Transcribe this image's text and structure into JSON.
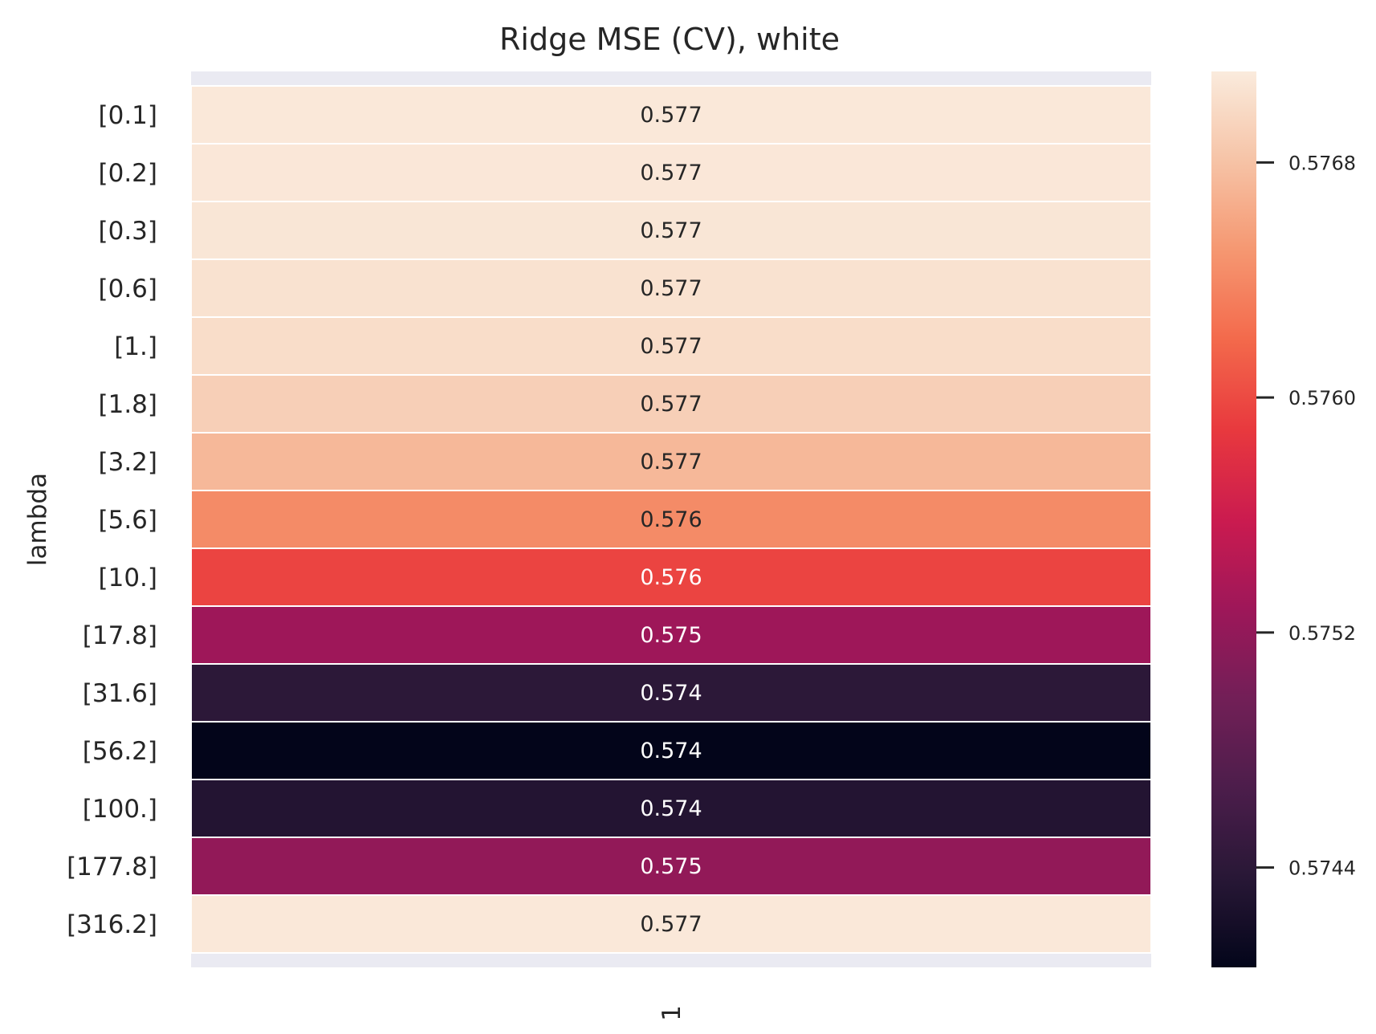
{
  "chart_data": {
    "type": "heatmap",
    "title": "Ridge MSE (CV), white",
    "ylabel": "lambda",
    "xlabel": "",
    "x_categories": [
      "1"
    ],
    "y_categories": [
      "[0.1]",
      "[0.2]",
      "[0.3]",
      "[0.6]",
      "[1.]",
      "[1.8]",
      "[3.2]",
      "[5.6]",
      "[10.]",
      "[17.8]",
      "[31.6]",
      "[56.2]",
      "[100.]",
      "[177.8]",
      "[316.2]"
    ],
    "values": [
      0.57709,
      0.57708,
      0.57707,
      0.57704,
      0.577,
      0.5769,
      0.57673,
      0.57642,
      0.57596,
      0.57528,
      0.5744,
      0.57406,
      0.57432,
      0.5752,
      0.57709
    ],
    "cell_labels": [
      "0.577",
      "0.577",
      "0.577",
      "0.577",
      "0.577",
      "0.577",
      "0.577",
      "0.576",
      "0.576",
      "0.575",
      "0.574",
      "0.574",
      "0.574",
      "0.575",
      "0.577"
    ],
    "colorbar": {
      "colormap": "rocket",
      "vmin": 0.57406,
      "vmax": 0.57711,
      "ticks": [
        0.5744,
        0.5752,
        0.576,
        0.5768
      ],
      "tick_labels": [
        "0.5744",
        "0.5752",
        "0.5760",
        "0.5768"
      ]
    },
    "grid": false,
    "background_color": "#eaeaf2"
  }
}
